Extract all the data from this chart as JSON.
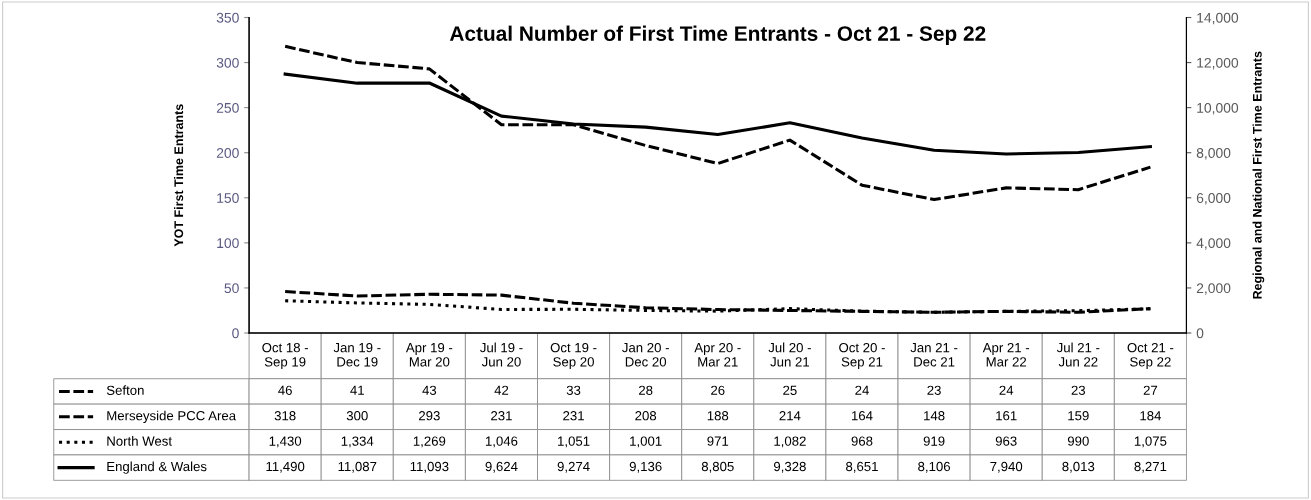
{
  "chart_data": {
    "type": "line",
    "title": "Actual Number of First Time Entrants - Oct 21 - Sep 22",
    "ylabel": "YOT First Time Entrants",
    "y2label": "Regional and National First Time Entrants",
    "categories": [
      "Oct 18 - Sep 19",
      "Jan 19 - Dec 19",
      "Apr 19 - Mar 20",
      "Jul 19 - Jun 20",
      "Oct 19 - Sep 20",
      "Jan 20 - Dec 20",
      "Apr 20 - Mar 21",
      "Jul 20 - Jun 21",
      "Oct 20 - Sep 21",
      "Jan 21 - Dec 21",
      "Apr 21 - Mar 22",
      "Jul 21 - Jun 22",
      "Oct 21 - Sep 22"
    ],
    "series": [
      {
        "name": "Sefton",
        "color": "#000000",
        "line_style": "dashed",
        "values": [
          46,
          41,
          43,
          42,
          33,
          28,
          26,
          25,
          24,
          23,
          24,
          23,
          27
        ],
        "value_labels": [
          "46",
          "41",
          "43",
          "42",
          "33",
          "28",
          "26",
          "25",
          "24",
          "23",
          "24",
          "23",
          "27"
        ]
      },
      {
        "name": "Merseyside PCC Area",
        "color": "#000000",
        "line_style": "dashed",
        "values": [
          318,
          300,
          293,
          231,
          231,
          208,
          188,
          214,
          164,
          148,
          161,
          159,
          184
        ],
        "value_labels": [
          "318",
          "300",
          "293",
          "231",
          "231",
          "208",
          "188",
          "214",
          "164",
          "148",
          "161",
          "159",
          "184"
        ]
      },
      {
        "name": "North West",
        "color": "#000000",
        "line_style": "dotted",
        "axis": "y2",
        "values": [
          1430,
          1334,
          1269,
          1046,
          1051,
          1001,
          971,
          1082,
          968,
          919,
          963,
          990,
          1075
        ],
        "value_labels": [
          "1,430",
          "1,334",
          "1,269",
          "1,046",
          "1,051",
          "1,001",
          "971",
          "1,082",
          "968",
          "919",
          "963",
          "990",
          "1,075"
        ]
      },
      {
        "name": "England & Wales",
        "color": "#000000",
        "line_style": "solid",
        "axis": "y2",
        "values": [
          11490,
          11087,
          11093,
          9624,
          9274,
          9136,
          8805,
          9328,
          8651,
          8106,
          7940,
          8013,
          8271
        ],
        "value_labels": [
          "11,490",
          "11,087",
          "11,093",
          "9,624",
          "9,274",
          "9,136",
          "8,805",
          "9,328",
          "8,651",
          "8,106",
          "7,940",
          "8,013",
          "8,271"
        ]
      }
    ],
    "ylim": [
      0,
      350
    ],
    "yticks": [
      0,
      50,
      100,
      150,
      200,
      250,
      300,
      350
    ],
    "y2lim": [
      0,
      14000
    ],
    "y2ticks": [
      {
        "value": 0,
        "label": "0"
      },
      {
        "value": 2000,
        "label": "2,000"
      },
      {
        "value": 4000,
        "label": "4,000"
      },
      {
        "value": 6000,
        "label": "6,000"
      },
      {
        "value": 8000,
        "label": "8,000"
      },
      {
        "value": 10000,
        "label": "10,000"
      },
      {
        "value": 12000,
        "label": "12,000"
      },
      {
        "value": 14000,
        "label": "14,000"
      }
    ],
    "data_labels": true,
    "grid": false,
    "legend": "bottom left",
    "marker": "none"
  }
}
